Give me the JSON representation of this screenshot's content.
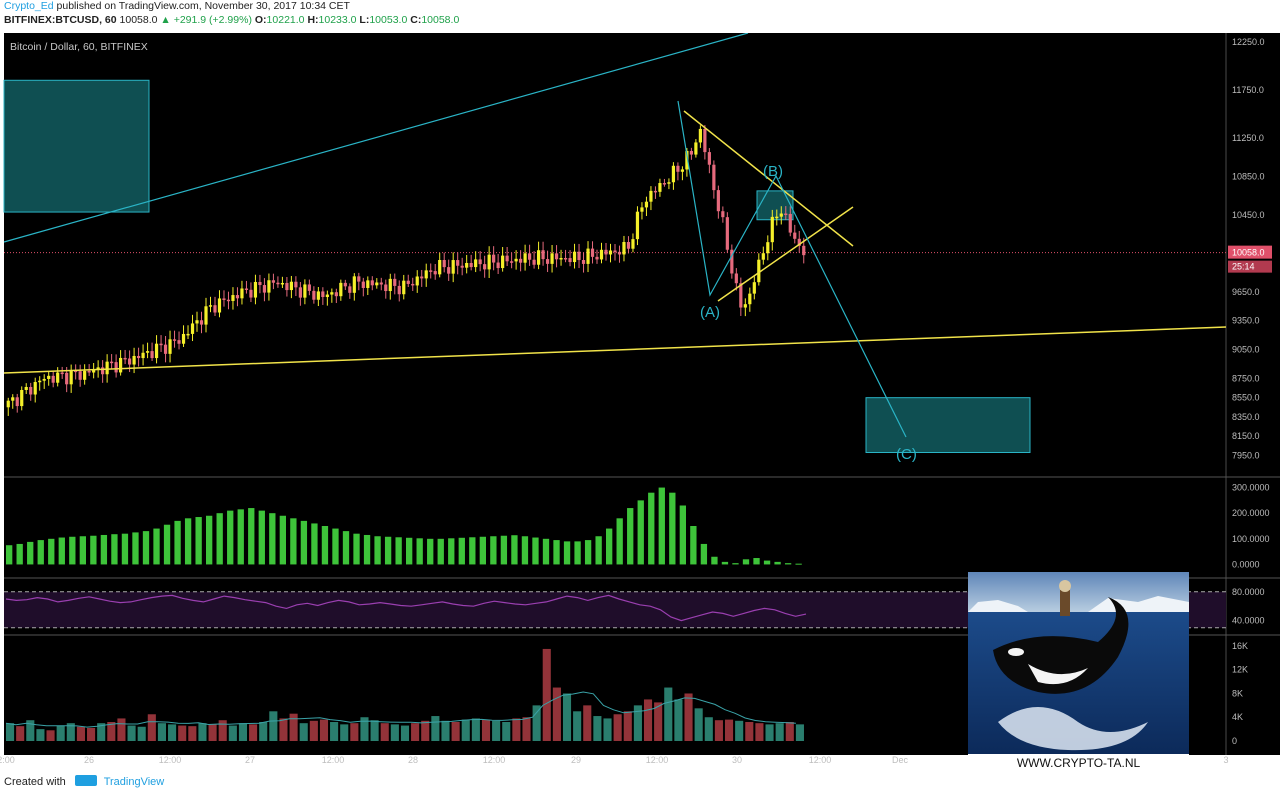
{
  "header": {
    "author": "Crypto_Ed",
    "published": "published on TradingView.com, November 30, 2017 10:34 CET",
    "symbol_line": "BITFINEX:BTCUSD, 60",
    "last": "10058.0",
    "change": "▲ +291.9 (+2.99%)",
    "o_label": "O:",
    "o": "10221.0",
    "h_label": "H:",
    "h": "10233.0",
    "l_label": "L:",
    "l": "10053.0",
    "c_label": "C:",
    "c": "10058.0"
  },
  "chart_title": "Bitcoin / Dollar, 60, BITFINEX",
  "footer": {
    "created": "Created with",
    "brand": "TradingView"
  },
  "overlay": {
    "caption": "WWW.CRYPTO-TA.NL"
  },
  "colors": {
    "background": "#000000",
    "up": "#f5f02a",
    "down": "#e66a7d",
    "trend_cyan": "#2ab4c6",
    "trend_yellow": "#f1e34a",
    "box_fill": "#0f4f52",
    "osc_bar": "#3ec43a",
    "rsi_line": "#9a3fb0",
    "rsi_band": "#1f0d2a",
    "vol_up": "#2f8c7a",
    "vol_down": "#a3393f",
    "price_line": "#e0506a"
  },
  "chart_data": [
    {
      "type": "candlestick",
      "pane": "price",
      "title": "Bitcoin / Dollar, 60, BITFINEX",
      "ylim": [
        7850,
        12300
      ],
      "y_ticks": [
        "12250.0",
        "11750.0",
        "11250.0",
        "10850.0",
        "10450.0",
        "10058.0",
        "9650.0",
        "9350.0",
        "9050.0",
        "8750.0",
        "8550.0",
        "8350.0",
        "8150.0",
        "7950.0"
      ],
      "last_price": "10058.0",
      "countdown": "25:14",
      "x_ticks": [
        "2:00",
        "26",
        "12:00",
        "27",
        "12:00",
        "28",
        "12:00",
        "29",
        "12:00",
        "30",
        "12:00",
        "Dec",
        "12:00",
        "2",
        "12:00",
        "3"
      ],
      "close_path": [
        [
          0,
          8450
        ],
        [
          0.05,
          8750
        ],
        [
          0.1,
          8800
        ],
        [
          0.16,
          8950
        ],
        [
          0.22,
          9150
        ],
        [
          0.26,
          9500
        ],
        [
          0.3,
          9650
        ],
        [
          0.34,
          9750
        ],
        [
          0.4,
          9600
        ],
        [
          0.44,
          9750
        ],
        [
          0.5,
          9700
        ],
        [
          0.54,
          9900
        ],
        [
          0.6,
          9950
        ],
        [
          0.66,
          10000
        ],
        [
          0.72,
          10000
        ],
        [
          0.75,
          10050
        ],
        [
          0.78,
          10100
        ],
        [
          0.8,
          10600
        ],
        [
          0.84,
          10900
        ],
        [
          0.86,
          11100
        ],
        [
          0.87,
          11350
        ],
        [
          0.88,
          11000
        ],
        [
          0.9,
          10300
        ],
        [
          0.92,
          9500
        ],
        [
          0.93,
          9550
        ],
        [
          0.95,
          10100
        ],
        [
          0.97,
          10550
        ],
        [
          0.985,
          10250
        ],
        [
          1.0,
          10058
        ]
      ],
      "annotations": [
        "(A)",
        "(B)",
        "(C)"
      ],
      "points": {
        "(A)": 9400,
        "(B)": 10500,
        "(C)": 8150
      },
      "zones": [
        {
          "y": [
            10480,
            11850
          ]
        },
        {
          "y": [
            7980,
            8550
          ]
        },
        {
          "y": [
            10400,
            10700
          ]
        }
      ]
    },
    {
      "type": "bar",
      "pane": "oscillator",
      "y_ticks": [
        "300.0000",
        "200.0000",
        "100.0000",
        "0.0000"
      ],
      "ylim": [
        -10,
        310
      ],
      "values": [
        75,
        80,
        88,
        95,
        100,
        105,
        108,
        110,
        112,
        115,
        118,
        120,
        125,
        130,
        140,
        155,
        170,
        180,
        185,
        190,
        200,
        210,
        215,
        220,
        210,
        200,
        190,
        180,
        170,
        160,
        150,
        140,
        130,
        120,
        115,
        110,
        108,
        106,
        104,
        102,
        100,
        100,
        102,
        104,
        106,
        108,
        110,
        112,
        114,
        110,
        105,
        100,
        95,
        90,
        90,
        95,
        110,
        140,
        180,
        220,
        250,
        280,
        300,
        280,
        230,
        150,
        80,
        30,
        10,
        5,
        20,
        25,
        15,
        10,
        5,
        3
      ]
    },
    {
      "type": "line",
      "pane": "rsi",
      "y_ticks": [
        "80.0000",
        "40.0000"
      ],
      "ylim": [
        20,
        95
      ],
      "band": [
        30,
        80
      ],
      "values": [
        70,
        68,
        69,
        72,
        70,
        66,
        68,
        71,
        73,
        70,
        67,
        65,
        66,
        69,
        72,
        74,
        75,
        71,
        68,
        66,
        70,
        74,
        72,
        69,
        67,
        65,
        60,
        57,
        62,
        64,
        61,
        65,
        68,
        66,
        62,
        63,
        65,
        63,
        61,
        60,
        62,
        64,
        66,
        63,
        61,
        60,
        64,
        67,
        65,
        63,
        62,
        64,
        66,
        70,
        74,
        72,
        68,
        72,
        75,
        70,
        66,
        62,
        60,
        55,
        45,
        40,
        44,
        48,
        52,
        50,
        46,
        50,
        54,
        57,
        55,
        50,
        46,
        49
      ]
    },
    {
      "type": "bar",
      "pane": "volume",
      "y_ticks": [
        "16K",
        "12K",
        "8K",
        "4K",
        "0"
      ],
      "ylim": [
        0,
        16500
      ],
      "values": [
        3000,
        2500,
        3500,
        2000,
        1800,
        2600,
        3000,
        2400,
        2200,
        3000,
        3200,
        3800,
        2600,
        2400,
        4500,
        3000,
        2800,
        2600,
        2500,
        3000,
        2800,
        3500,
        2600,
        3000,
        2800,
        3200,
        5000,
        3800,
        4600,
        3000,
        3400,
        3600,
        3200,
        2800,
        3000,
        4000,
        3500,
        3000,
        2800,
        2600,
        3000,
        3400,
        4200,
        3400,
        3200,
        3600,
        3800,
        3600,
        3400,
        3200,
        3800,
        4000,
        6000,
        15500,
        9000,
        8000,
        5000,
        6000,
        4200,
        3800,
        4500,
        5000,
        6000,
        7000,
        6500,
        9000,
        7000,
        8000,
        5500,
        4000,
        3500,
        3600,
        3400,
        3200,
        3000,
        2800,
        3000,
        3200,
        2800
      ]
    }
  ]
}
